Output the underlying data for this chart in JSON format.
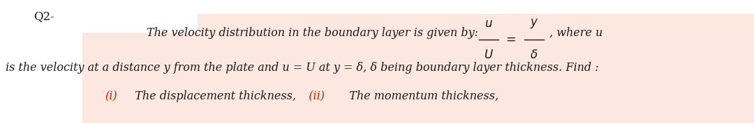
{
  "bg_color": "#ffffff",
  "box_color": "#fce8e0",
  "q_label": "Q2-",
  "text_color": "#1a1a1a",
  "roman_color": "#cc2200",
  "line1_text": "The velocity distribution in the boundary layer is given by:  ",
  "line2_text": "is the velocity at a distance y from the plate and u = U at y = δ, δ being boundary layer thickness. Find :",
  "line3a_roman": "(i)",
  "line3a_text": "  The displacement thickness,",
  "line3b_roman": "  (ii)",
  "line3b_text": "  The momentum thickness,",
  "main_fontsize": 11.5,
  "q_fontsize": 12
}
